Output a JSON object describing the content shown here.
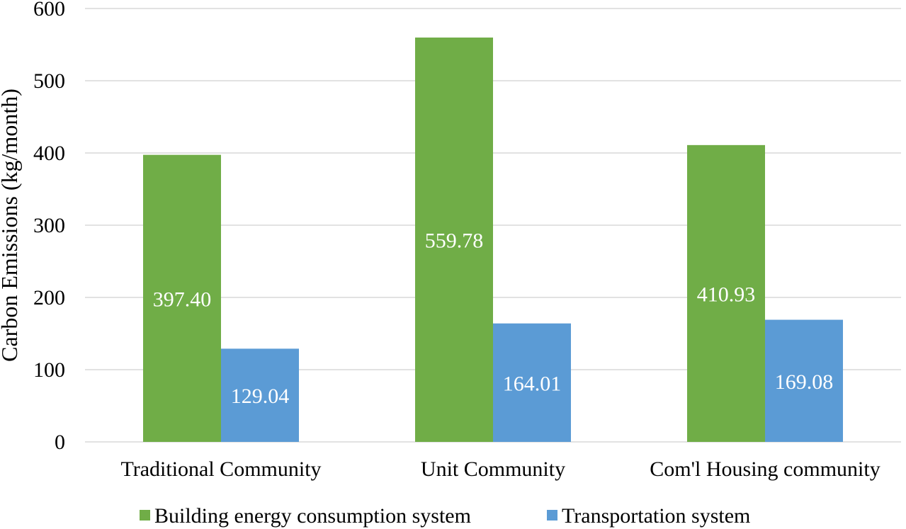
{
  "chart_data": {
    "type": "bar",
    "title": "",
    "xlabel": "",
    "ylabel": "Carbon Emissions (kg/month)",
    "ylim": [
      0,
      600
    ],
    "yticks": [
      0,
      100,
      200,
      300,
      400,
      500,
      600
    ],
    "ytick_labels": [
      "0",
      "100",
      "200",
      "300",
      "400",
      "500",
      "600"
    ],
    "grid": true,
    "legend_position": "bottom",
    "categories": [
      "Traditional Community",
      "Unit Community",
      "Com'l Housing community"
    ],
    "series": [
      {
        "name": "Building energy consumption system",
        "color": "#70ad47",
        "values": [
          397.4,
          559.78,
          410.93
        ],
        "labels": [
          "397.40",
          "559.78",
          "410.93"
        ]
      },
      {
        "name": "Transportation system",
        "color": "#5b9bd5",
        "values": [
          129.04,
          164.01,
          169.08
        ],
        "labels": [
          "129.04",
          "164.01",
          "169.08"
        ]
      }
    ]
  }
}
